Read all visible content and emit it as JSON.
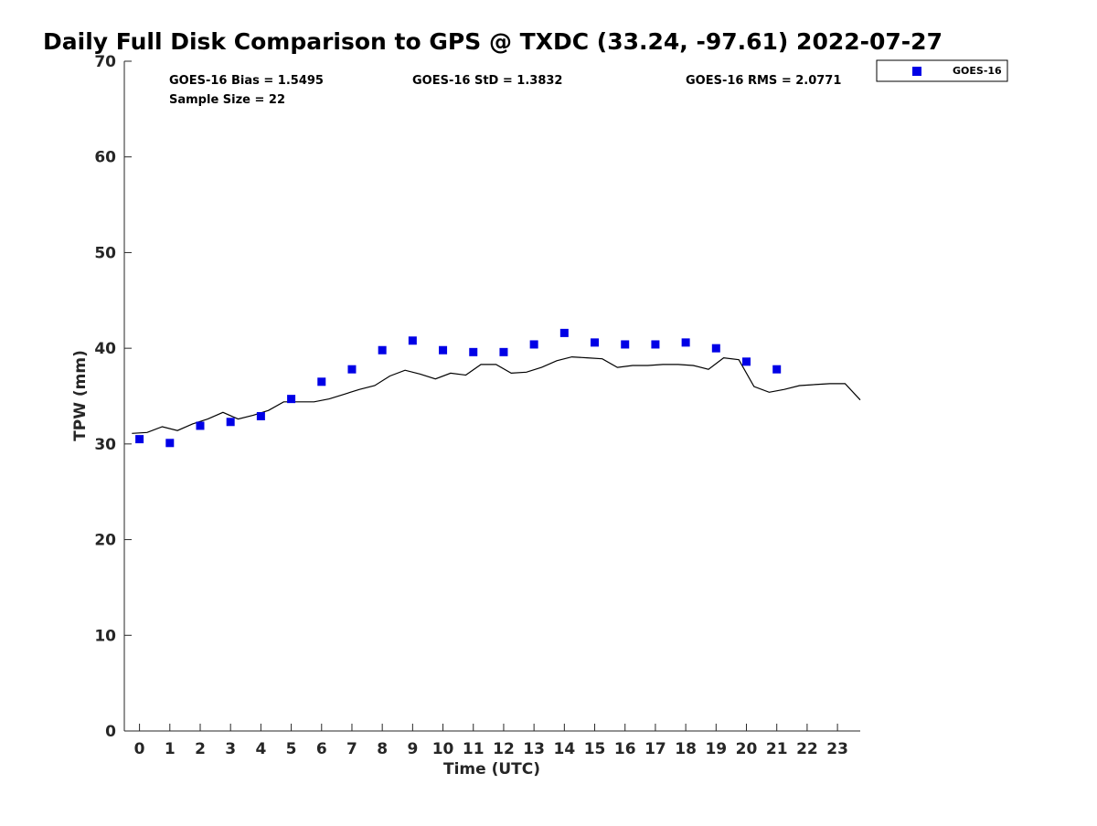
{
  "chart_data": {
    "type": "scatter",
    "title": "Daily Full Disk Comparison to GPS @ TXDC (33.24, -97.61) 2022-07-27",
    "xlabel": "Time (UTC)",
    "ylabel": "TPW (mm)",
    "xlim": [
      -0.5,
      23.75
    ],
    "ylim": [
      0,
      70
    ],
    "x_ticks": [
      0,
      1,
      2,
      3,
      4,
      5,
      6,
      7,
      8,
      9,
      10,
      11,
      12,
      13,
      14,
      15,
      16,
      17,
      18,
      19,
      20,
      21,
      22,
      23
    ],
    "y_ticks": [
      0,
      10,
      20,
      30,
      40,
      50,
      60,
      70
    ],
    "grid": false,
    "legend_position": "outside-top-right",
    "series": [
      {
        "name": "GOES-16",
        "kind": "markers",
        "marker": "square",
        "color": "#0000e6",
        "x": [
          0,
          1,
          2,
          3,
          4,
          5,
          6,
          7,
          8,
          9,
          10,
          11,
          12,
          13,
          14,
          15,
          16,
          17,
          18,
          19,
          20,
          21
        ],
        "y": [
          30.5,
          30.1,
          31.9,
          32.3,
          32.9,
          34.7,
          36.5,
          37.8,
          39.8,
          40.8,
          39.8,
          39.6,
          39.6,
          40.4,
          41.6,
          40.6,
          40.4,
          40.4,
          40.6,
          40.0,
          38.6,
          37.8
        ]
      },
      {
        "kind": "line",
        "color": "#000000",
        "x": [
          -0.25,
          0.25,
          0.75,
          1.25,
          1.75,
          2.25,
          2.75,
          3.25,
          3.75,
          4.25,
          4.75,
          5.25,
          5.75,
          6.25,
          6.75,
          7.25,
          7.75,
          8.25,
          8.75,
          9.25,
          9.75,
          10.25,
          10.75,
          11.25,
          11.75,
          12.25,
          12.75,
          13.25,
          13.75,
          14.25,
          14.75,
          15.25,
          15.75,
          16.25,
          16.75,
          17.25,
          17.75,
          18.25,
          18.75,
          19.25,
          19.75,
          20.25,
          20.75,
          21.25,
          21.75,
          22.25,
          22.75,
          23.25,
          23.75
        ],
        "y": [
          31.1,
          31.2,
          31.8,
          31.4,
          32.1,
          32.6,
          33.3,
          32.6,
          33.0,
          33.5,
          34.4,
          34.4,
          34.4,
          34.7,
          35.2,
          35.7,
          36.1,
          37.1,
          37.7,
          37.3,
          36.8,
          37.4,
          37.2,
          38.3,
          38.3,
          37.4,
          37.5,
          38.0,
          38.7,
          39.1,
          39.0,
          38.9,
          38.0,
          38.2,
          38.2,
          38.3,
          38.3,
          38.2,
          37.8,
          39.0,
          38.8,
          36.0,
          35.4,
          35.7,
          36.1,
          36.2,
          36.3,
          36.3,
          34.6
        ]
      }
    ],
    "annotations": [
      "GOES-16 Bias = 1.5495",
      "GOES-16 StD = 1.3832",
      "GOES-16 RMS = 2.0771",
      "Sample Size = 22"
    ]
  }
}
